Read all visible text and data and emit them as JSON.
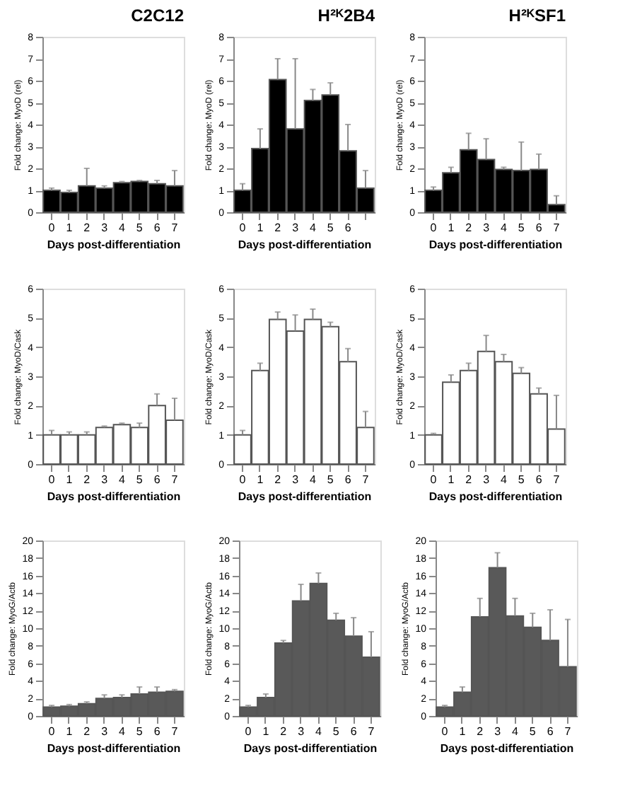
{
  "chart_data": [
    {
      "type": "bar",
      "title": "C2C12",
      "xlabel": "Days post-differentiation",
      "ylabel": "Fold change: MyoD (rel)",
      "categories": [
        "0",
        "1",
        "2",
        "3",
        "4",
        "5",
        "6",
        "7"
      ],
      "series": [
        {
          "color": "#000000",
          "values": [
            1.0,
            0.9,
            1.2,
            1.1,
            1.35,
            1.4,
            1.3,
            1.2
          ],
          "errors": [
            [
              1.0,
              1.1
            ],
            [
              0.9,
              1.0
            ],
            [
              1.2,
              2.0
            ],
            [
              1.1,
              1.2
            ],
            [
              1.35,
              1.4
            ],
            [
              1.4,
              1.45
            ],
            [
              1.3,
              1.45
            ],
            [
              1.2,
              1.9
            ]
          ]
        }
      ],
      "ylim": [
        0,
        8
      ],
      "yticks": [
        0,
        1,
        2,
        3,
        4,
        5,
        6,
        7,
        8
      ],
      "grid": false,
      "legend": false
    },
    {
      "type": "bar",
      "title": "H²ᴷ2B4",
      "xlabel": "Days post-differentiation",
      "ylabel": "Fold change: MyoD (rel)",
      "categories": [
        "0",
        "1",
        "2",
        "3",
        "4",
        "5",
        "6",
        null
      ],
      "series": [
        {
          "color": "#000000",
          "values": [
            1.0,
            2.9,
            6.05,
            3.8,
            5.1,
            5.35,
            2.8,
            1.1
          ],
          "errors": [
            [
              1.0,
              1.3
            ],
            [
              2.9,
              3.8
            ],
            [
              6.05,
              7.0
            ],
            [
              3.8,
              7.0
            ],
            [
              5.1,
              5.6
            ],
            [
              5.35,
              5.9
            ],
            [
              2.8,
              4.0
            ],
            [
              1.1,
              1.9
            ]
          ]
        }
      ],
      "ylim": [
        0,
        8
      ],
      "yticks": [
        0,
        1,
        2,
        3,
        4,
        5,
        6,
        7,
        8
      ],
      "grid": false,
      "legend": false
    },
    {
      "type": "bar",
      "title": "H²ᴷSF1",
      "xlabel": "Days post-differentiation",
      "ylabel": "Fold change: MyoD (rel)",
      "categories": [
        "0",
        "1",
        "2",
        "3",
        "4",
        "5",
        "6",
        "7"
      ],
      "series": [
        {
          "color": "#000000",
          "values": [
            1.0,
            1.8,
            2.85,
            2.4,
            1.95,
            1.9,
            1.95,
            0.35
          ],
          "errors": [
            [
              1.0,
              1.15
            ],
            [
              1.8,
              2.05
            ],
            [
              2.85,
              3.6
            ],
            [
              2.4,
              3.35
            ],
            [
              1.95,
              2.05
            ],
            [
              1.9,
              3.2
            ],
            [
              1.95,
              2.65
            ],
            [
              0.35,
              0.75
            ]
          ]
        }
      ],
      "ylim": [
        0,
        8
      ],
      "yticks": [
        0,
        1,
        2,
        3,
        4,
        5,
        6,
        7,
        8
      ],
      "grid": false,
      "legend": false
    },
    {
      "type": "bar",
      "xlabel": "Days post-differentiation",
      "ylabel": "Fold change: MyoD/Cask",
      "categories": [
        "0",
        "1",
        "2",
        "3",
        "4",
        "5",
        "6",
        "7"
      ],
      "series": [
        {
          "color": "#ffffff",
          "values": [
            1.0,
            1.0,
            1.0,
            1.25,
            1.35,
            1.25,
            2.0,
            1.5
          ],
          "errors": [
            [
              1.0,
              1.15
            ],
            [
              1.0,
              1.1
            ],
            [
              1.0,
              1.1
            ],
            [
              1.25,
              1.3
            ],
            [
              1.35,
              1.4
            ],
            [
              1.25,
              1.4
            ],
            [
              2.0,
              2.4
            ],
            [
              1.5,
              2.25
            ]
          ]
        }
      ],
      "ylim": [
        0,
        6
      ],
      "yticks": [
        0,
        1,
        2,
        3,
        4,
        5,
        6
      ],
      "grid": false,
      "legend": false
    },
    {
      "type": "bar",
      "xlabel": "Days post-differentiation",
      "ylabel": "Fold change: MyoD/Cask",
      "categories": [
        "0",
        "1",
        "2",
        "3",
        "4",
        "5",
        "6",
        "7"
      ],
      "series": [
        {
          "color": "#ffffff",
          "values": [
            1.0,
            3.2,
            4.95,
            4.55,
            4.95,
            4.7,
            3.5,
            1.25
          ],
          "errors": [
            [
              1.0,
              1.15
            ],
            [
              3.2,
              3.45
            ],
            [
              4.95,
              5.2
            ],
            [
              4.55,
              5.1
            ],
            [
              4.95,
              5.3
            ],
            [
              4.7,
              4.85
            ],
            [
              3.5,
              3.95
            ],
            [
              1.25,
              1.8
            ]
          ]
        }
      ],
      "ylim": [
        0,
        6
      ],
      "yticks": [
        0,
        1,
        2,
        3,
        4,
        5,
        6
      ],
      "grid": false,
      "legend": false
    },
    {
      "type": "bar",
      "xlabel": "Days post-differentiation",
      "ylabel": "Fold change: MyoD/Cask",
      "categories": [
        "0",
        "1",
        "2",
        "3",
        "4",
        "5",
        "6",
        "7"
      ],
      "series": [
        {
          "color": "#ffffff",
          "values": [
            1.0,
            2.8,
            3.2,
            3.85,
            3.5,
            3.1,
            2.4,
            1.2
          ],
          "errors": [
            [
              1.0,
              1.05
            ],
            [
              2.8,
              3.05
            ],
            [
              3.2,
              3.45
            ],
            [
              3.85,
              4.4
            ],
            [
              3.5,
              3.75
            ],
            [
              3.1,
              3.3
            ],
            [
              2.4,
              2.6
            ],
            [
              1.2,
              2.35
            ]
          ]
        }
      ],
      "ylim": [
        0,
        6
      ],
      "yticks": [
        0,
        1,
        2,
        3,
        4,
        5,
        6
      ],
      "grid": false,
      "legend": false
    },
    {
      "type": "bar",
      "xlabel": "Days post-differentiation",
      "ylabel": "Fold change: MyoG/Actb",
      "categories": [
        "0",
        "1",
        "2",
        "3",
        "4",
        "5",
        "6",
        "7"
      ],
      "series": [
        {
          "color": "#595959",
          "values": [
            1.0,
            1.1,
            1.4,
            2.0,
            2.1,
            2.5,
            2.7,
            2.8
          ],
          "errors": [
            [
              1.0,
              1.2
            ],
            [
              1.1,
              1.3
            ],
            [
              1.4,
              1.6
            ],
            [
              2.0,
              2.4
            ],
            [
              2.1,
              2.4
            ],
            [
              2.5,
              3.3
            ],
            [
              2.7,
              3.3
            ],
            [
              2.8,
              3.0
            ]
          ]
        }
      ],
      "ylim": [
        0,
        20
      ],
      "yticks": [
        0,
        2,
        4,
        6,
        8,
        10,
        12,
        14,
        16,
        18,
        20
      ],
      "grid": false,
      "legend": false
    },
    {
      "type": "bar",
      "xlabel": "Days post-differentiation",
      "ylabel": "Fold change: MyoG/Actb",
      "categories": [
        "0",
        "1",
        "2",
        "3",
        "4",
        "5",
        "6",
        "7"
      ],
      "series": [
        {
          "color": "#595959",
          "values": [
            1.0,
            2.1,
            8.3,
            13.1,
            15.1,
            10.9,
            9.1,
            6.7
          ],
          "errors": [
            [
              1.0,
              1.2
            ],
            [
              2.1,
              2.5
            ],
            [
              8.3,
              8.6
            ],
            [
              13.1,
              15.0
            ],
            [
              15.1,
              16.3
            ],
            [
              10.9,
              11.7
            ],
            [
              9.1,
              11.2
            ],
            [
              6.7,
              9.6
            ]
          ]
        }
      ],
      "ylim": [
        0,
        20
      ],
      "yticks": [
        0,
        2,
        4,
        6,
        8,
        10,
        12,
        14,
        16,
        18,
        20
      ],
      "grid": false,
      "legend": false
    },
    {
      "type": "bar",
      "xlabel": "Days post-differentiation",
      "ylabel": "Fold change: MyoG/Actb",
      "categories": [
        "0",
        "1",
        "2",
        "3",
        "4",
        "5",
        "6",
        "7"
      ],
      "series": [
        {
          "color": "#595959",
          "values": [
            1.0,
            2.7,
            11.3,
            16.9,
            11.4,
            10.1,
            8.6,
            5.6
          ],
          "errors": [
            [
              1.0,
              1.2
            ],
            [
              2.7,
              3.3
            ],
            [
              11.3,
              13.4
            ],
            [
              16.9,
              18.6
            ],
            [
              11.4,
              13.4
            ],
            [
              10.1,
              11.7
            ],
            [
              8.6,
              12.1
            ],
            [
              5.6,
              11.0
            ]
          ]
        }
      ],
      "ylim": [
        0,
        20
      ],
      "yticks": [
        0,
        2,
        4,
        6,
        8,
        10,
        12,
        14,
        16,
        18,
        20
      ],
      "grid": false,
      "legend": false
    }
  ]
}
